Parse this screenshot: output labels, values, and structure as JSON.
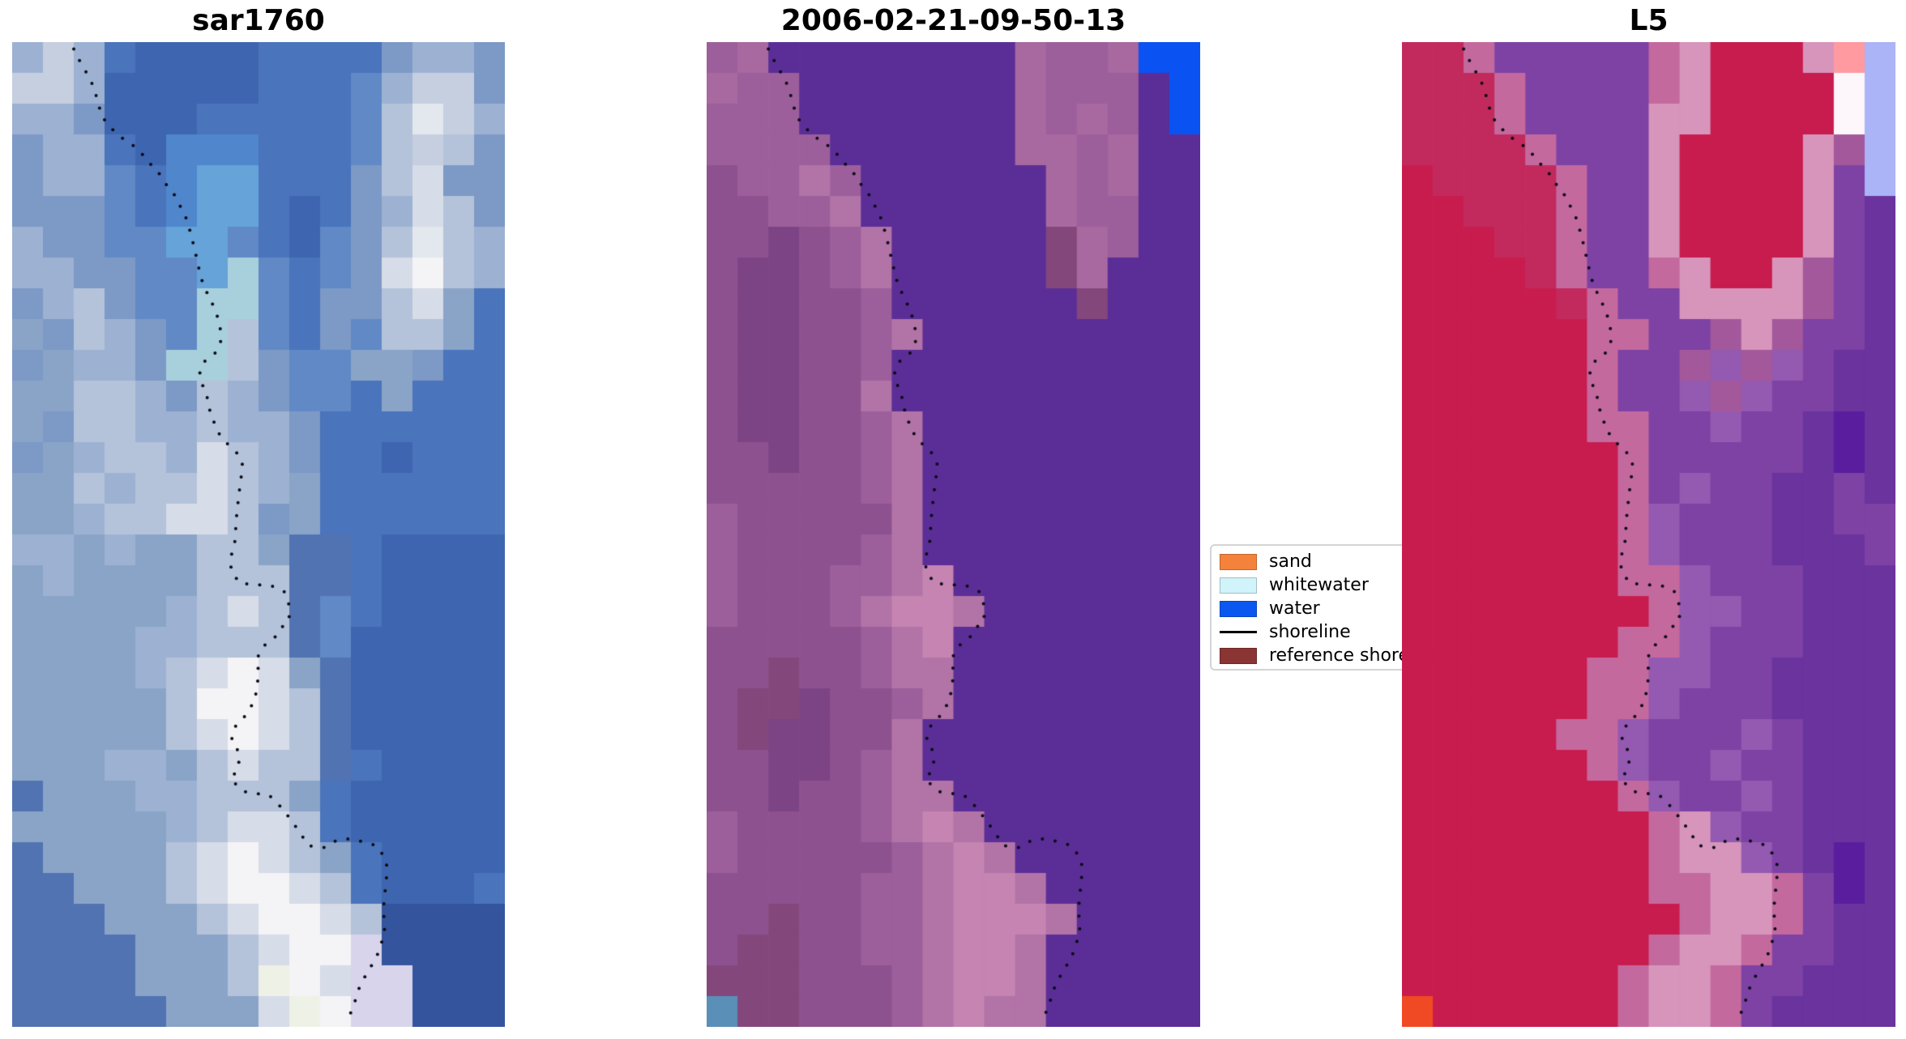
{
  "figure": {
    "background": "#ffffff",
    "note": "matplotlib-style figure with three pixelated satellite image panels and a classification legend"
  },
  "chart_data": {
    "type": "heatmap",
    "title": "",
    "layout_hints": {
      "panels_axis_off": true,
      "legend_position": "between panel 2 and panel 3, partially overlapped/clipped by panel 3",
      "grid": "16x32 color cells per panel (nearest-neighbour pixel look)"
    },
    "panels": [
      {
        "title": "sar1760",
        "grid": [
          16,
          32
        ],
        "palette": {
          "a": "#3e66b0",
          "b": "#4a74bc",
          "c": "#6089c6",
          "d": "#7d99c6",
          "e": "#9db2d2",
          "f": "#c6cfdf",
          "g": "#e3e7ee",
          "h": "#4f86cc",
          "i": "#65a3d8",
          "j": "#a8cfdc",
          "k": "#35549e",
          "l": "#b4c3da",
          "m": "#d6dce8",
          "n": "#f4f3f5",
          "o": "#8aa4c8",
          "p": "#5273b2",
          "q": "#d8d4ec",
          "r": "#eef2e6"
        },
        "pixel_rows": [
          "efebaaaabbbbdeed",
          "ffeaaaaabbbceffd",
          "eedaaabbbbbclgfe",
          "deebahhhbbbclfld",
          "deecbhiibbbdlmdd",
          "dddcbhiibabdemld",
          "eddcciicbacdlgle",
          "eeddccijcbcdmnle",
          "deldccjjcbddlmob",
          "odledcjlcbdcllob",
          "doeedjjldccoodbb",
          "oolledledccbobbb",
          "odlleeleedbbbbbb",
          "doellemledbbabbb",
          "oolellmleobbbbbb",
          "ooellmmldobbbbbb",
          "eeoeoolloppbaaaa",
          "oeoooolllppbaaaa",
          "oooooelmlpcbaaaa",
          "ooooeelllpcaaaaa",
          "ooooelmnmopaaaaa",
          "ooooolnnmlpaaaaa",
          "ooooolmnmlpaaaaa",
          "oooeeolmllpbaaaa",
          "poooeelllobaaaaa",
          "oooooelmmlbaaaaa",
          "poooolmnmlobaaaa",
          "ppooolmnnmlbaaab",
          "pppooolmnnmlkkkk",
          "ppppooolmnnqkkkk",
          "ppppooolrnmqqkkk",
          "pppppooomrnqqkkk"
        ]
      },
      {
        "title": "2006-02-21-09-50-13",
        "grid": [
          16,
          32
        ],
        "palette": {
          "W": "#5b2e97",
          "A": "#8e5190",
          "B": "#9c5f9b",
          "C": "#7c4484",
          "D": "#b273a7",
          "E": "#c584b1",
          "F": "#a868a0",
          "G": "#84477c",
          "T": "#5a8fb8",
          "U": "#0b52f2"
        },
        "pixel_rows": [
          "BFWWWWWWWWFBBFUU",
          "FBBWWWWWWWFBBBWU",
          "BBBWWWWWWWFBFBWU",
          "BBBBWWWWWWFFBFWW",
          "ABBDBWWWWWWFBFWW",
          "AABBDWWWWWWFBBWW",
          "AACABDWWWWWGFBWW",
          "ACCABDWWWWWGFWWW",
          "ACCAABWWWWWWGWWW",
          "ACCAABDWWWWWWWWW",
          "ACCAABWWWWWWWWWW",
          "ACCAADWWWWWWWWWW",
          "ACCAABDWWWWWWWWW",
          "AACAABDWWWWWWWWW",
          "AAAAABDWWWWWWWWW",
          "BAAAAADWWWWWWWWW",
          "BAAAABDWWWWWWWWW",
          "BAAABBDEWWWWWWWW",
          "BAAABDEEDWWWWWWW",
          "AAAAABDEWWWWWWWW",
          "AAGAABDDWWWWWWWW",
          "AGGCAABDWWWWWWWW",
          "AGCCAADWWWWWWWWW",
          "AACCABDWWWWWWWWW",
          "AACAABDDWWWWWWWW",
          "BAAAABDEDWWWWWWW",
          "BAAAAABDEDWWWWWW",
          "AAAAABBDEEDWWWWW",
          "AAGAABBDEEEDWWWW",
          "AGGAABBDEEDWWWWW",
          "GGGAAABDEEDWWWWW",
          "TGGAAABDEDDWWWWW"
        ]
      },
      {
        "title": "L5",
        "grid": [
          16,
          32
        ],
        "palette": {
          "R": "#c81c4e",
          "S": "#c22a5e",
          "P": "#7e42a4",
          "Q": "#6b339e",
          "V": "#9459b0",
          "H": "#c4699e",
          "I": "#d795bc",
          "M": "#a4589c",
          "X": "#5a1d9e",
          "O": "#f04a24",
          "L": "#aab4f6",
          "N": "#fdf7fb",
          "Z": "#ff9aa0"
        },
        "pixel_rows": [
          "SSHPPPPPHIRRRIZL",
          "SSSHPPPPHIRRRRNL",
          "SSSHPPPPIIRRRRNL",
          "SSSSHPPPIRRRRIML",
          "RSSSSHPPIRRRRIPL",
          "RRSSSHPPIRRRRIPQ",
          "RRRSSHPPIRRRRIPQ",
          "RRRRSHPPHIRRIMPQ",
          "RRRRRSHPPIIIIMPQ",
          "RRRRRRHHPPMIMPPQ",
          "RRRRRRHPPMVMVPQQ",
          "RRRRRRHPPVMVPPQQ",
          "RRRRRRHHPPVPPQXQ",
          "RRRRRRRHPPPPPQXQ",
          "RRRRRRRHPVPPQQPQ",
          "RRRRRRRHVPPPQQPP",
          "RRRRRRRHVPPPQQQP",
          "RRRRRRRHHVPPPQQQ",
          "RRRRRRRRHVVPPQQQ",
          "RRRRRRRHHVPPPQQQ",
          "RRRRRRHHVVPPQQQQ",
          "RRRRRRHHVPPPQQQQ",
          "RRRRRHHVPPPVPQQQ",
          "RRRRRRHVPPVPPQQQ",
          "RRRRRRRHVPPVPQQQ",
          "RRRRRRRRHIVPPQQQ",
          "RRRRRRRRHIIVPQXQ",
          "RRRRRRRRHHIIHPXQ",
          "RRRRRRRRRHIIHPQQ",
          "RRRRRRRRHIIHPPQQ",
          "RRRRRRRHIIHPPQQQ",
          "ORRRRRRHIIHPQQQQ"
        ]
      }
    ],
    "shoreline_color": "#0a0a14",
    "shoreline_dot_radius": 2.0,
    "shoreline_dot_spacing": 16,
    "shoreline_points": [
      [
        0.125,
        0.007
      ],
      [
        0.139,
        0.021
      ],
      [
        0.147,
        0.028
      ],
      [
        0.157,
        0.036
      ],
      [
        0.167,
        0.048
      ],
      [
        0.174,
        0.061
      ],
      [
        0.178,
        0.068
      ],
      [
        0.183,
        0.076
      ],
      [
        0.2,
        0.087
      ],
      [
        0.229,
        0.1
      ],
      [
        0.255,
        0.108
      ],
      [
        0.269,
        0.117
      ],
      [
        0.281,
        0.124
      ],
      [
        0.292,
        0.128
      ],
      [
        0.307,
        0.141
      ],
      [
        0.328,
        0.154
      ],
      [
        0.337,
        0.163
      ],
      [
        0.345,
        0.17
      ],
      [
        0.355,
        0.181
      ],
      [
        0.361,
        0.192
      ],
      [
        0.365,
        0.198
      ],
      [
        0.369,
        0.209
      ],
      [
        0.376,
        0.222
      ],
      [
        0.381,
        0.235
      ],
      [
        0.389,
        0.248
      ],
      [
        0.404,
        0.263
      ],
      [
        0.415,
        0.276
      ],
      [
        0.422,
        0.289
      ],
      [
        0.424,
        0.303
      ],
      [
        0.414,
        0.315
      ],
      [
        0.389,
        0.325
      ],
      [
        0.381,
        0.336
      ],
      [
        0.386,
        0.346
      ],
      [
        0.389,
        0.355
      ],
      [
        0.397,
        0.362
      ],
      [
        0.404,
        0.382
      ],
      [
        0.414,
        0.389
      ],
      [
        0.419,
        0.397
      ],
      [
        0.442,
        0.411
      ],
      [
        0.46,
        0.419
      ],
      [
        0.468,
        0.43
      ],
      [
        0.462,
        0.452
      ],
      [
        0.456,
        0.478
      ],
      [
        0.452,
        0.507
      ],
      [
        0.445,
        0.521
      ],
      [
        0.444,
        0.535
      ],
      [
        0.46,
        0.549
      ],
      [
        0.47,
        0.55
      ],
      [
        0.498,
        0.551
      ],
      [
        0.526,
        0.552
      ],
      [
        0.552,
        0.558
      ],
      [
        0.563,
        0.573
      ],
      [
        0.562,
        0.587
      ],
      [
        0.554,
        0.589
      ],
      [
        0.539,
        0.602
      ],
      [
        0.521,
        0.609
      ],
      [
        0.509,
        0.614
      ],
      [
        0.496,
        0.627
      ],
      [
        0.501,
        0.641
      ],
      [
        0.496,
        0.656
      ],
      [
        0.493,
        0.668
      ],
      [
        0.476,
        0.682
      ],
      [
        0.47,
        0.686
      ],
      [
        0.453,
        0.695
      ],
      [
        0.445,
        0.709
      ],
      [
        0.46,
        0.721
      ],
      [
        0.46,
        0.736
      ],
      [
        0.444,
        0.749
      ],
      [
        0.47,
        0.761
      ],
      [
        0.481,
        0.762
      ],
      [
        0.496,
        0.763
      ],
      [
        0.522,
        0.765
      ],
      [
        0.55,
        0.779
      ],
      [
        0.564,
        0.789
      ],
      [
        0.582,
        0.801
      ],
      [
        0.601,
        0.816
      ],
      [
        0.634,
        0.818
      ],
      [
        0.657,
        0.811
      ],
      [
        0.684,
        0.809
      ],
      [
        0.713,
        0.812
      ],
      [
        0.739,
        0.816
      ],
      [
        0.759,
        0.83
      ],
      [
        0.761,
        0.842
      ],
      [
        0.757,
        0.862
      ],
      [
        0.753,
        0.882
      ],
      [
        0.757,
        0.898
      ],
      [
        0.75,
        0.914
      ],
      [
        0.739,
        0.93
      ],
      [
        0.719,
        0.946
      ],
      [
        0.711,
        0.954
      ],
      [
        0.704,
        0.961
      ],
      [
        0.694,
        0.977
      ],
      [
        0.683,
        0.991
      ]
    ],
    "legend": {
      "items": [
        {
          "label": "sand",
          "swatch": "patch",
          "color": "#f5823b"
        },
        {
          "label": "whitewater",
          "swatch": "patch",
          "color": "#d1f3fa"
        },
        {
          "label": "water",
          "swatch": "patch",
          "color": "#0b58f0"
        },
        {
          "label": "shoreline",
          "swatch": "line",
          "color": "#000000"
        },
        {
          "label": "reference shoreline",
          "swatch": "patch",
          "color": "#8b3434"
        }
      ],
      "visible_truncation": "last label clipped to 'reference shoreli' by panel 3 overlap"
    }
  }
}
